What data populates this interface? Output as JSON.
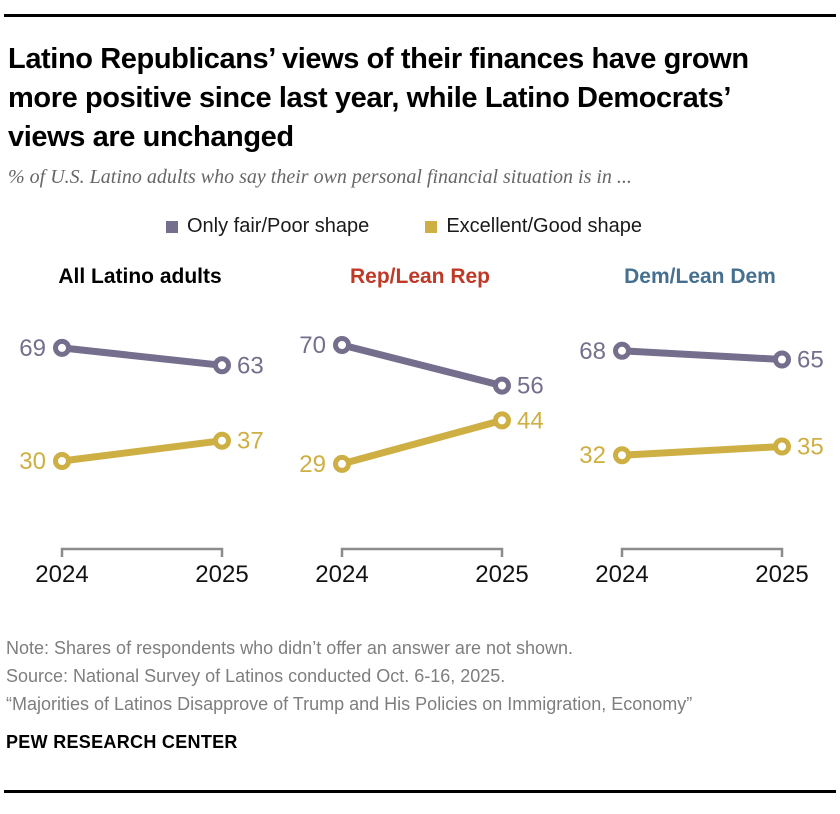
{
  "header": {
    "title_lines": [
      "Latino Republicans’ views of their finances have grown",
      "more positive since last year, while Latino Democrats’",
      "views are unchanged"
    ],
    "subtitle": "% of U.S. Latino adults who say their own personal financial situation is in ..."
  },
  "legend": {
    "items": [
      {
        "label": "Only fair/Poor shape",
        "color": "#756e8c"
      },
      {
        "label": "Excellent/Good shape",
        "color": "#cdaf43"
      }
    ]
  },
  "chart_data": {
    "type": "line",
    "x_labels": [
      "2024",
      "2025"
    ],
    "axis_color": "#8c8c8c",
    "year_label_color": "#121212",
    "ylim": [
      0,
      100
    ],
    "grid": false,
    "legend_position": "top",
    "panels": [
      {
        "title": "All Latino adults",
        "title_color": "#000000",
        "series": [
          {
            "name": "Only fair/Poor shape",
            "color": "#756e8c",
            "values": [
              69,
              63
            ]
          },
          {
            "name": "Excellent/Good shape",
            "color": "#cdaf43",
            "values": [
              30,
              37
            ]
          }
        ]
      },
      {
        "title": "Rep/Lean Rep",
        "title_color": "#bf3927",
        "series": [
          {
            "name": "Only fair/Poor shape",
            "color": "#756e8c",
            "values": [
              70,
              56
            ]
          },
          {
            "name": "Excellent/Good shape",
            "color": "#cdaf43",
            "values": [
              29,
              44
            ]
          }
        ]
      },
      {
        "title": "Dem/Lean Dem",
        "title_color": "#45708f",
        "series": [
          {
            "name": "Only fair/Poor shape",
            "color": "#756e8c",
            "values": [
              68,
              65
            ]
          },
          {
            "name": "Excellent/Good shape",
            "color": "#cdaf43",
            "values": [
              32,
              35
            ]
          }
        ]
      }
    ]
  },
  "footer": {
    "note": "Note: Shares of respondents who didn’t offer an answer are not shown.",
    "source": "Source: National Survey of Latinos conducted Oct. 6-16, 2025.",
    "report": "“Majorities of Latinos Disapprove of Trump and His Policies on Immigration, Economy”",
    "brand": "PEW RESEARCH CENTER"
  }
}
